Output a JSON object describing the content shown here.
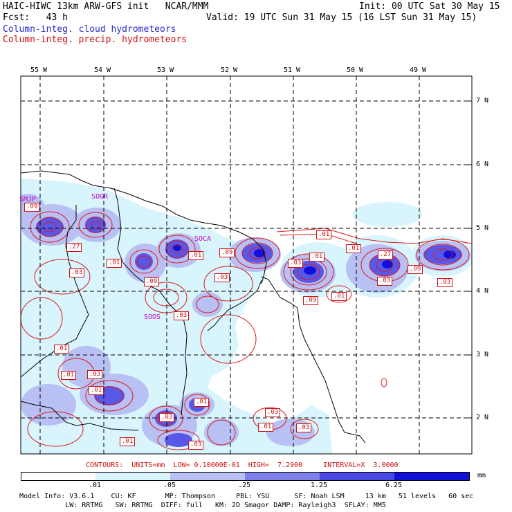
{
  "header": {
    "line1_left": "HAIC-HIWC 13km ARW-GFS init   NCAR/MMM",
    "line1_right": "Init: 00 UTC Sat 30 May 15",
    "line2_left": "Fcst:   43 h",
    "line2_right": "Valid: 19 UTC Sun 31 May 15 (16 LST Sun 31 May 15)",
    "legend_cloud": "Column-integ. cloud hydrometeors",
    "legend_precip": "Column-integ. precip. hydrometeors"
  },
  "colors": {
    "cloud_fill_light": "#d8f4fc",
    "cloud_fill_mid": "#b8c0f4",
    "cloud_fill_dark": "#5858e8",
    "cloud_fill_core": "#1010d8",
    "precip_contour": "#e01818",
    "coastline": "#000000",
    "station_label": "#c000c0"
  },
  "lon_labels": [
    "55 W",
    "54 W",
    "53 W",
    "52 W",
    "51 W",
    "50 W",
    "49 W"
  ],
  "lat_labels": [
    "7 N",
    "6 N",
    "5 N",
    "4 N",
    "3 N",
    "2 N"
  ],
  "stations": [
    "SMJP",
    "SOGR",
    "SOCA",
    "SOOS"
  ],
  "contour_labels": [
    ".09",
    ".27",
    ".03",
    ".01",
    ".01",
    ".09",
    ".01",
    ".09",
    ".03",
    ".03",
    ".03",
    ".01",
    ".01",
    ".09",
    ".01",
    ".01",
    ".27",
    ".03",
    ".09",
    ".03",
    ".01",
    ".01",
    ".03",
    ".03",
    ".01",
    ".03",
    ".01",
    ".03",
    ".03",
    ".01"
  ],
  "contours_note": "CONTOURS:  UNITS=mm  LOW= 0.10000E-01  HIGH=  7.2900     INTERVAL=X  3.0000",
  "colorbar": {
    "ticks": [
      ".01",
      ".05",
      ".25",
      "1.25",
      "6.25"
    ],
    "unit": "mm",
    "segments": [
      "#ffffff",
      "#d8f4fc",
      "#b8c0f4",
      "#8080ec",
      "#4848e4",
      "#1010d8"
    ]
  },
  "model_info": {
    "line1": "Model Info: V3.6.1    CU: KF       MP: Thompson     PBL: YSU      SF: Noah LSM     13 km   51 levels   60 sec",
    "line2": "           LW: RRTMG   SW: RRTMG  DIFF: full   KM: 2D Smagor DAMP: Rayleigh3  SFLAY: MM5"
  }
}
